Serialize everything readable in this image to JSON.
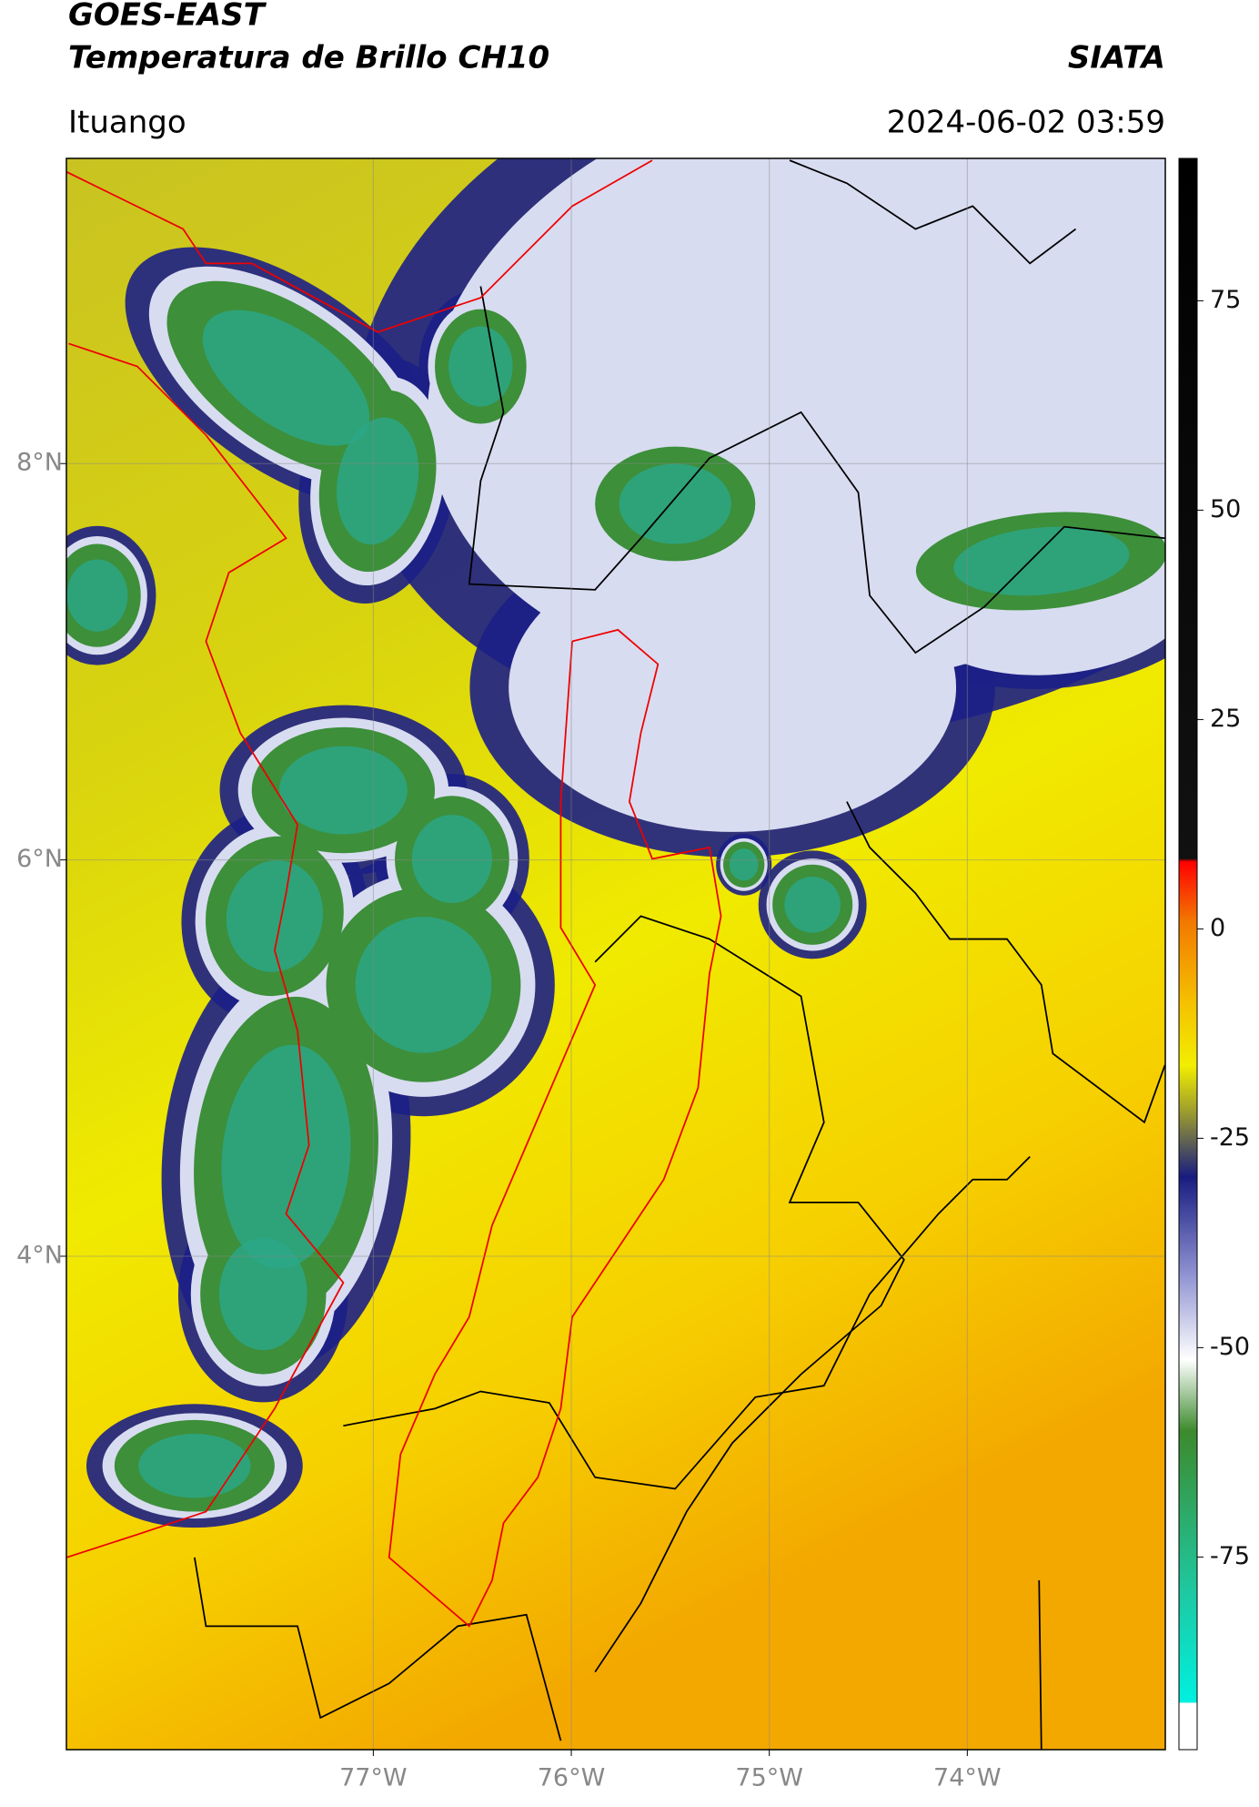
{
  "header": {
    "title": "GOES-EAST",
    "subtitle": "Temperatura de Brillo CH10",
    "source": "SIATA",
    "location": "Ituango",
    "datetime": "2024-06-02 03:59"
  },
  "map": {
    "xlim": [
      -78.55,
      -73.0
    ],
    "ylim": [
      1.51,
      9.54
    ],
    "xticks": [
      {
        "value": -77,
        "label": "77°W"
      },
      {
        "value": -76,
        "label": "76°W"
      },
      {
        "value": -75,
        "label": "75°W"
      },
      {
        "value": -74,
        "label": "74°W"
      }
    ],
    "yticks": [
      {
        "value": 8,
        "label": "8°N"
      },
      {
        "value": 6,
        "label": "6°N"
      },
      {
        "value": 4,
        "label": "4°N"
      }
    ],
    "grid": true
  },
  "colorbar": {
    "clim": [
      -98,
      92
    ],
    "ticks": [
      75,
      50,
      25,
      0,
      -25,
      -50,
      -75
    ]
  }
}
